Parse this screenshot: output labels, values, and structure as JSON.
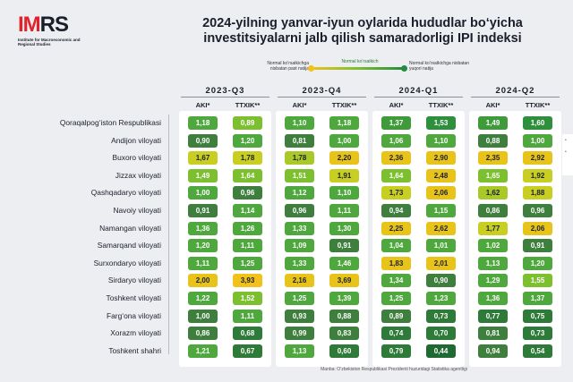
{
  "logo": {
    "mark_red": "IM",
    "mark_dark": "RS",
    "subtitle": "Institute for Macroeconomic and Regional Studies"
  },
  "title": {
    "line1": "2024-yilning yanvar-iyun oylarida hududlar bo‘yicha",
    "line2": "investitsiyalarni jalb qilish samaradorligi IPI indeksi"
  },
  "legend": {
    "low": "Normal ko‘rsatkichga nisbatan past natija",
    "mid": "Normal ko‘rsatkich",
    "high": "Normal ko‘rsatkichga nisbatan yuqori natija",
    "colors": {
      "low": "#f2c21b",
      "mid": "#7cbf2f",
      "high": "#238a3f"
    }
  },
  "source": "Manba: O‘zbekiston Respublikasi Prezidenti huzuridagi Statistika agentligi",
  "side": {
    "labels": [
      "•",
      "•"
    ]
  },
  "chart_data": {
    "type": "heatmap",
    "title": "2024-yilning yanvar-iyun oylarida hududlar bo‘yicha investitsiyalarni jalb qilish samaradorligi IPI indeksi",
    "quarters": [
      "2023-Q3",
      "2023-Q4",
      "2024-Q1",
      "2024-Q2"
    ],
    "metrics": [
      "AKI*",
      "TTXIK**"
    ],
    "regions": [
      "Qoraqalpog‘iston Respublikasi",
      "Andijon viloyati",
      "Buxoro viloyati",
      "Jizzax viloyati",
      "Qashqadaryo viloyati",
      "Navoiy viloyati",
      "Namangan viloyati",
      "Samarqand viloyati",
      "Surxondaryo viloyati",
      "Sirdaryo viloyati",
      "Toshkent viloyati",
      "Farg‘ona viloyati",
      "Xorazm viloyati",
      "Toshkent shahri"
    ],
    "values": [
      [
        "1,18",
        "0,89",
        "1,10",
        "1,18",
        "1,37",
        "1,53",
        "1,49",
        "1,60"
      ],
      [
        "0,90",
        "1,20",
        "0,81",
        "1,00",
        "1,06",
        "1,10",
        "0,88",
        "1,00"
      ],
      [
        "1,67",
        "1,78",
        "1,78",
        "2,20",
        "2,36",
        "2,90",
        "2,35",
        "2,92"
      ],
      [
        "1,49",
        "1,64",
        "1,51",
        "1,91",
        "1,64",
        "2,48",
        "1,65",
        "1,92"
      ],
      [
        "1,00",
        "0,96",
        "1,12",
        "1,10",
        "1,73",
        "2,06",
        "1,62",
        "1,88"
      ],
      [
        "0,91",
        "1,14",
        "0,96",
        "1,11",
        "0,94",
        "1,15",
        "0,86",
        "0,96"
      ],
      [
        "1,36",
        "1,26",
        "1,33",
        "1,30",
        "2,25",
        "2,62",
        "1,77",
        "2,06"
      ],
      [
        "1,20",
        "1,11",
        "1,09",
        "0,91",
        "1,04",
        "1,01",
        "1,02",
        "0,91"
      ],
      [
        "1,11",
        "1,25",
        "1,33",
        "1,46",
        "1,83",
        "2,01",
        "1,13",
        "1,20"
      ],
      [
        "2,00",
        "3,93",
        "2,16",
        "3,69",
        "1,34",
        "0,90",
        "1,29",
        "1,55"
      ],
      [
        "1,22",
        "1,52",
        "1,25",
        "1,39",
        "1,25",
        "1,23",
        "1,36",
        "1,37"
      ],
      [
        "1,00",
        "1,11",
        "0,93",
        "0,88",
        "0,89",
        "0,73",
        "0,77",
        "0,75"
      ],
      [
        "0,86",
        "0,68",
        "0,99",
        "0,83",
        "0,74",
        "0,70",
        "0,81",
        "0,73"
      ],
      [
        "1,21",
        "0,67",
        "1,13",
        "0,60",
        "0,79",
        "0,44",
        "0,94",
        "0,54"
      ]
    ],
    "colors": [
      [
        "#4fa83d",
        "#7cbf2f",
        "#4fa83d",
        "#4fa83d",
        "#3f9a3a",
        "#2e8f3c",
        "#3f9a3a",
        "#2e8f3c"
      ],
      [
        "#3f7f3e",
        "#4fa83d",
        "#3f7f3e",
        "#4fa83d",
        "#4fa83d",
        "#4fa83d",
        "#3f7f3e",
        "#4fa83d"
      ],
      [
        "#c8cf22",
        "#c8cf22",
        "#a9c928",
        "#e8c41b",
        "#e8c41b",
        "#e8c41b",
        "#e8c41b",
        "#e8c41b"
      ],
      [
        "#7cbf2f",
        "#7cbf2f",
        "#7cbf2f",
        "#c8cf22",
        "#7cbf2f",
        "#e8c41b",
        "#7cbf2f",
        "#c8cf22"
      ],
      [
        "#4fa83d",
        "#3f7f3e",
        "#4fa83d",
        "#4fa83d",
        "#c8cf22",
        "#e8c41b",
        "#a9c928",
        "#c8cf22"
      ],
      [
        "#3f7f3e",
        "#4fa83d",
        "#3f7f3e",
        "#4fa83d",
        "#3f7f3e",
        "#4fa83d",
        "#3f7f3e",
        "#3f7f3e"
      ],
      [
        "#4fa83d",
        "#4fa83d",
        "#4fa83d",
        "#4fa83d",
        "#e8c41b",
        "#e8c41b",
        "#c8cf22",
        "#e8c41b"
      ],
      [
        "#4fa83d",
        "#4fa83d",
        "#4fa83d",
        "#3f7f3e",
        "#4fa83d",
        "#4fa83d",
        "#4fa83d",
        "#3f7f3e"
      ],
      [
        "#4fa83d",
        "#4fa83d",
        "#4fa83d",
        "#4fa83d",
        "#e8c41b",
        "#e8c41b",
        "#4fa83d",
        "#4fa83d"
      ],
      [
        "#e8c41b",
        "#f2c21b",
        "#e8c41b",
        "#e8c41b",
        "#4fa83d",
        "#3f7f3e",
        "#4fa83d",
        "#7cbf2f"
      ],
      [
        "#4fa83d",
        "#7cbf2f",
        "#4fa83d",
        "#4fa83d",
        "#4fa83d",
        "#4fa83d",
        "#4fa83d",
        "#4fa83d"
      ],
      [
        "#3f7f3e",
        "#4fa83d",
        "#3f7f3e",
        "#3f7f3e",
        "#3f7f3e",
        "#2e7a38",
        "#2e7a38",
        "#2e7a38"
      ],
      [
        "#3f7f3e",
        "#2e7a38",
        "#3f7f3e",
        "#3f7f3e",
        "#2e7a38",
        "#2e7a38",
        "#3f7f3e",
        "#2e7a38"
      ],
      [
        "#4fa83d",
        "#2e7a38",
        "#4fa83d",
        "#2e7a38",
        "#2e7a38",
        "#1f6a33",
        "#3f7f3e",
        "#2e7a38"
      ]
    ]
  }
}
